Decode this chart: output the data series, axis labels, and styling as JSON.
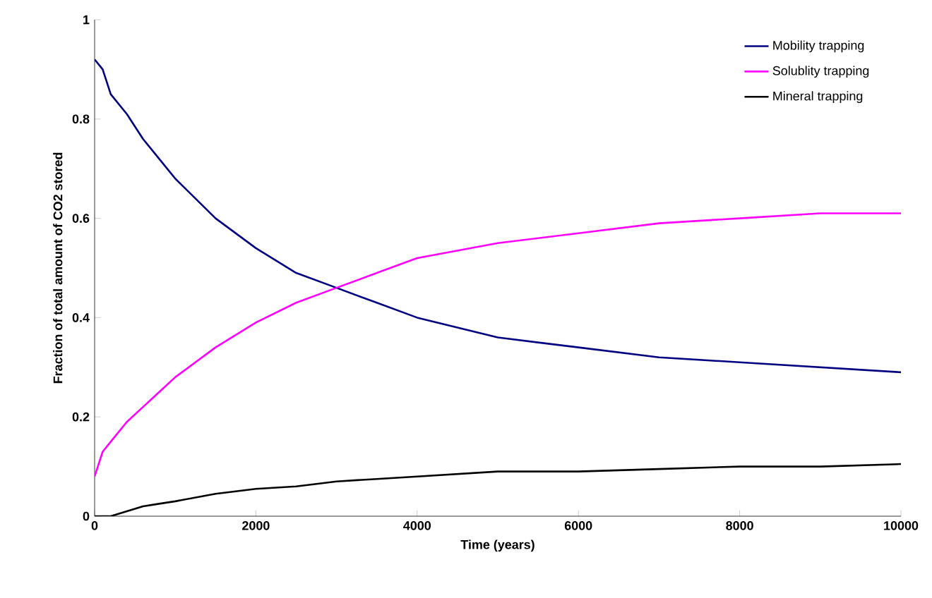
{
  "chart_data": {
    "type": "line",
    "xlabel": "Time (years)",
    "ylabel": "Fraction of total amount of CO2 stored",
    "x": [
      0,
      100,
      200,
      400,
      600,
      800,
      1000,
      1500,
      2000,
      2500,
      3000,
      3500,
      4000,
      5000,
      6000,
      7000,
      8000,
      9000,
      10000
    ],
    "series": [
      {
        "name": "Mobility trapping",
        "color": "#000080",
        "values": [
          0.92,
          0.9,
          0.85,
          0.81,
          0.76,
          0.72,
          0.68,
          0.6,
          0.54,
          0.49,
          0.46,
          0.43,
          0.4,
          0.36,
          0.34,
          0.32,
          0.31,
          0.3,
          0.29
        ]
      },
      {
        "name": "Solublity trapping",
        "color": "#ff00ff",
        "values": [
          0.08,
          0.13,
          0.15,
          0.19,
          0.22,
          0.25,
          0.28,
          0.34,
          0.39,
          0.43,
          0.46,
          0.49,
          0.52,
          0.55,
          0.57,
          0.59,
          0.6,
          0.61,
          0.61
        ]
      },
      {
        "name": "Mineral trapping",
        "color": "#000000",
        "values": [
          0,
          0,
          0,
          0.01,
          0.02,
          0.025,
          0.03,
          0.045,
          0.055,
          0.06,
          0.07,
          0.075,
          0.08,
          0.09,
          0.09,
          0.095,
          0.1,
          0.1,
          0.105
        ]
      }
    ],
    "xlim": [
      0,
      10000
    ],
    "ylim": [
      0,
      1
    ],
    "xticks": [
      0,
      2000,
      4000,
      6000,
      8000,
      10000
    ],
    "yticks": [
      0,
      0.2,
      0.4,
      0.6,
      0.8,
      1
    ],
    "grid": false,
    "legend": "top right",
    "marker": "none",
    "line_style": "solid"
  }
}
